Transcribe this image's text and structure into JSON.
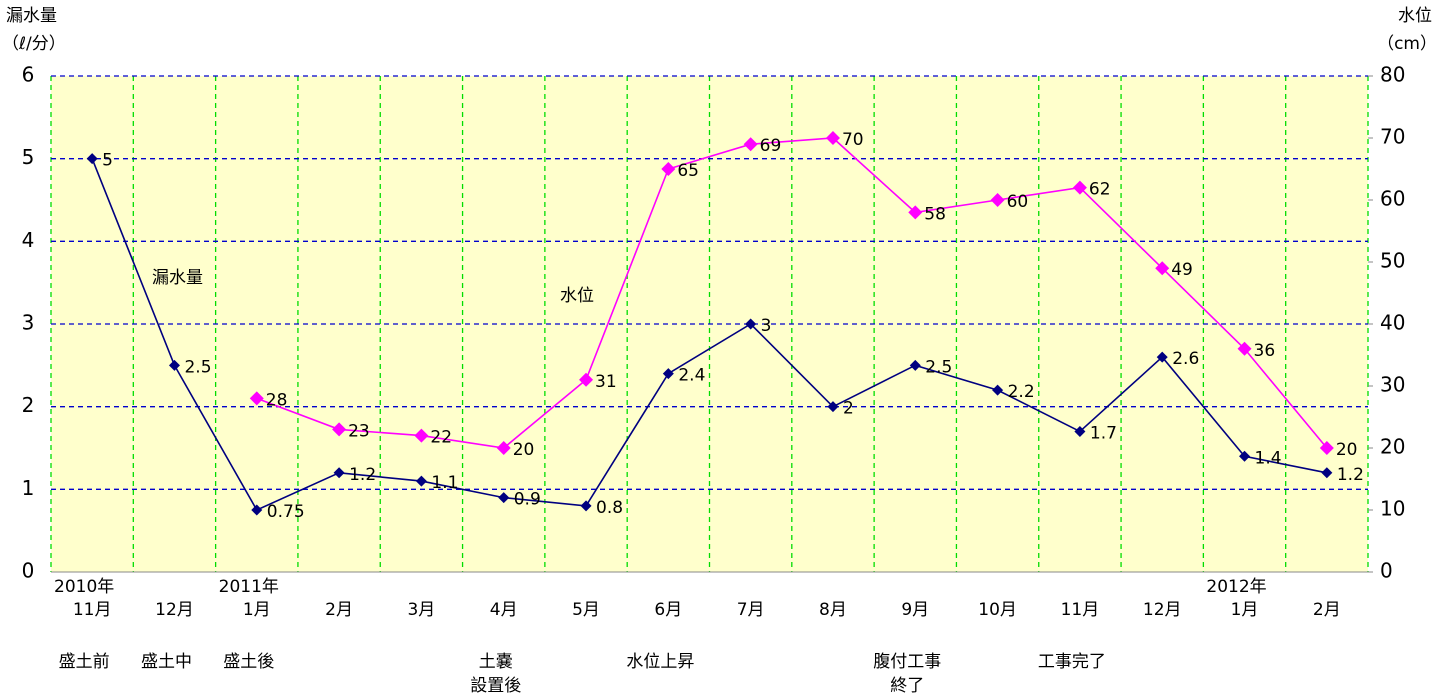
{
  "chart_data": {
    "type": "line",
    "y_title": [
      "漏水量",
      "（ℓ/分）"
    ],
    "y2_title": [
      "水位",
      "（cm）"
    ],
    "categories": [
      "11月",
      "12月",
      "1月",
      "2月",
      "3月",
      "4月",
      "5月",
      "6月",
      "7月",
      "8月",
      "9月",
      "10月",
      "11月",
      "12月",
      "1月",
      "2月"
    ],
    "category_years": [
      "2010年",
      null,
      "2011年",
      null,
      null,
      null,
      null,
      null,
      null,
      null,
      null,
      null,
      null,
      null,
      "2012年",
      null
    ],
    "phase_labels": [
      [
        "盛土前"
      ],
      [
        "盛土中"
      ],
      [
        "盛土後"
      ],
      null,
      null,
      [
        "土嚢",
        "設置後"
      ],
      null,
      [
        "水位上昇"
      ],
      null,
      null,
      [
        "腹付工事",
        "終了"
      ],
      null,
      [
        "工事完了"
      ],
      null,
      null,
      null
    ],
    "series": [
      {
        "name": "漏水量",
        "color": "#000080",
        "axis": "y",
        "values": [
          5,
          2.5,
          0.75,
          1.2,
          1.1,
          0.9,
          0.8,
          2.4,
          3,
          2,
          2.5,
          2.2,
          1.7,
          2.6,
          1.4,
          1.2
        ]
      },
      {
        "name": "水位",
        "color": "#ff00ff",
        "axis": "y2",
        "values": [
          null,
          null,
          28,
          23,
          22,
          20,
          31,
          65,
          69,
          70,
          58,
          60,
          62,
          49,
          36,
          20
        ]
      }
    ],
    "ylim": [
      0,
      6
    ],
    "yticks": [
      0,
      1,
      2,
      3,
      4,
      5,
      6
    ],
    "y2lim": [
      0,
      80
    ],
    "y2ticks": [
      0,
      10,
      20,
      30,
      40,
      50,
      60,
      70,
      80
    ],
    "grid": true,
    "background": "#ffffcc"
  }
}
